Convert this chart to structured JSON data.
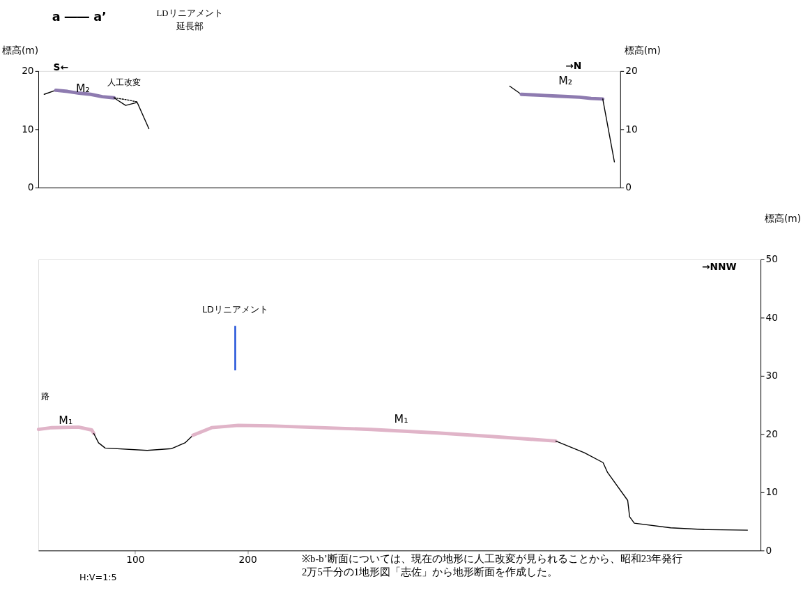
{
  "chart_data": [
    {
      "type": "line",
      "title": "a ―― a’",
      "ylabel": "標高(m)",
      "y2label": "標高(m)",
      "categories": [
        null,
        null,
        null,
        null,
        null,
        null,
        null,
        null,
        null,
        null,
        null,
        null,
        null,
        null,
        null,
        null,
        null,
        null,
        null,
        null,
        null,
        null,
        null,
        null,
        null,
        null,
        null,
        null,
        null,
        null,
        null,
        null,
        null,
        null,
        null,
        null,
        null,
        null,
        null,
        null,
        null,
        null,
        null,
        null,
        null,
        null,
        null,
        null,
        null,
        null
      ],
      "ylim": [
        0,
        20
      ],
      "yticks": [
        0,
        10,
        20
      ],
      "y2lim": [
        0,
        20
      ],
      "y2ticks": [
        0,
        10,
        20
      ],
      "tick_labels": "y",
      "grid": false,
      "series": [
        {
          "color": "#000000",
          "values": [
            16.0,
            16.7,
            null,
            null,
            null,
            null,
            null,
            null,
            null,
            null,
            null,
            null,
            null,
            null,
            null,
            null,
            null,
            null,
            null,
            null,
            null,
            null,
            null,
            null,
            null,
            null,
            null,
            null,
            null,
            null,
            null,
            null,
            null,
            null,
            null,
            null,
            null,
            null,
            null,
            null,
            null,
            null,
            null,
            null,
            null,
            null,
            null,
            null,
            null,
            null
          ]
        },
        {
          "color": "#8e7bb0",
          "values": [
            null,
            16.7,
            16.5,
            16.2,
            16.0,
            15.6,
            15.4,
            null,
            null,
            null,
            null,
            null,
            null,
            null,
            null,
            null,
            null,
            null,
            null,
            null,
            null,
            null,
            null,
            null,
            null,
            null,
            null,
            null,
            null,
            null,
            null,
            null,
            null,
            null,
            null,
            null,
            null,
            null,
            null,
            null,
            null,
            null,
            null,
            null,
            null,
            null,
            null,
            null,
            null,
            null
          ]
        },
        {
          "color": "#000000",
          "values": [
            null,
            null,
            null,
            null,
            null,
            null,
            15.4,
            14.1,
            14.6,
            10.1,
            null,
            null,
            null,
            null,
            null,
            null,
            null,
            null,
            null,
            null,
            null,
            null,
            null,
            null,
            null,
            null,
            null,
            null,
            null,
            null,
            null,
            null,
            null,
            null,
            null,
            null,
            null,
            null,
            null,
            null,
            null,
            null,
            null,
            null,
            null,
            null,
            null,
            null,
            null,
            null
          ]
        },
        {
          "color": "#000000",
          "line_style": "dotted",
          "values": [
            null,
            null,
            null,
            null,
            null,
            null,
            15.4,
            15.1,
            14.7,
            null,
            null,
            null,
            null,
            null,
            null,
            null,
            null,
            null,
            null,
            null,
            null,
            null,
            null,
            null,
            null,
            null,
            null,
            null,
            null,
            null,
            null,
            null,
            null,
            null,
            null,
            null,
            null,
            null,
            null,
            null,
            null,
            null,
            null,
            null,
            null,
            null,
            null,
            null,
            null,
            null
          ]
        },
        {
          "color": "#000000",
          "axis": "y2",
          "values": [
            null,
            null,
            null,
            null,
            null,
            null,
            null,
            null,
            null,
            null,
            null,
            null,
            null,
            null,
            null,
            null,
            null,
            null,
            null,
            null,
            null,
            null,
            null,
            null,
            null,
            null,
            null,
            null,
            null,
            null,
            null,
            null,
            null,
            null,
            null,
            null,
            null,
            null,
            null,
            null,
            17.4,
            16.0,
            null,
            null,
            null,
            null,
            null,
            null,
            null,
            null
          ]
        },
        {
          "color": "#8e7bb0",
          "axis": "y2",
          "values": [
            null,
            null,
            null,
            null,
            null,
            null,
            null,
            null,
            null,
            null,
            null,
            null,
            null,
            null,
            null,
            null,
            null,
            null,
            null,
            null,
            null,
            null,
            null,
            null,
            null,
            null,
            null,
            null,
            null,
            null,
            null,
            null,
            null,
            null,
            null,
            null,
            null,
            null,
            null,
            null,
            null,
            16.0,
            15.9,
            15.8,
            15.7,
            15.6,
            15.5,
            15.3,
            15.2,
            null
          ]
        },
        {
          "color": "#000000",
          "axis": "y2",
          "values": [
            null,
            null,
            null,
            null,
            null,
            null,
            null,
            null,
            null,
            null,
            null,
            null,
            null,
            null,
            null,
            null,
            null,
            null,
            null,
            null,
            null,
            null,
            null,
            null,
            null,
            null,
            null,
            null,
            null,
            null,
            null,
            null,
            null,
            null,
            null,
            null,
            null,
            null,
            null,
            null,
            null,
            null,
            null,
            null,
            null,
            null,
            null,
            null,
            15.2,
            4.4
          ]
        }
      ],
      "annotations": [
        "S←",
        "→N",
        "M₂",
        "M₂",
        "人工改変",
        "LDリニアメント延長部"
      ]
    },
    {
      "type": "line",
      "y2label": "標高(m)",
      "xlim": [
        14,
        656
      ],
      "xticks": [
        100,
        200
      ],
      "y2lim": [
        0,
        50
      ],
      "y2ticks": [
        0,
        10,
        20,
        30,
        40,
        50
      ],
      "grid": false,
      "series": [
        {
          "color": "#e0b4c8",
          "axis": "y2",
          "x": [
            14.2,
            26,
            49.7,
            61.5,
            63.3
          ],
          "values": [
            20.8,
            21.1,
            21.2,
            20.7,
            20.1
          ]
        },
        {
          "color": "#000000",
          "axis": "y2",
          "x": [
            63.3,
            67.5,
            73.4,
            110.7,
            132.5,
            144.4,
            151.5
          ],
          "values": [
            20.1,
            18.5,
            17.6,
            17.2,
            17.5,
            18.5,
            19.8
          ]
        },
        {
          "color": "#e0b4c8",
          "axis": "y2",
          "x": [
            151.5,
            168,
            191.7,
            221,
            250.9,
            310,
            369,
            416.6,
            474
          ],
          "values": [
            19.8,
            21.1,
            21.5,
            21.4,
            21.2,
            20.8,
            20.2,
            19.6,
            18.8
          ]
        },
        {
          "color": "#000000",
          "axis": "y2",
          "x": [
            474,
            499.4,
            516,
            520,
            537.9,
            539.6,
            543.8,
            576,
            606,
            644.4
          ],
          "values": [
            18.8,
            16.8,
            15.1,
            13.4,
            8.6,
            5.8,
            4.7,
            3.9,
            3.6,
            3.5
          ]
        }
      ],
      "annotations": [
        "→NNW",
        "路",
        "M₁",
        "M₁",
        "H:V=1:5",
        "※b-b’断面については、現在の地形に人工改変が見られることから、昭和23年発行\n2万5千分の1地形図「志佐」から地形断面を作成した。"
      ],
      "ref_lines": [
        {
          "axis": "x",
          "value": 189,
          "label": "LDリニアメント",
          "color": "#1f4fd8",
          "line_style": "solid"
        }
      ]
    }
  ]
}
